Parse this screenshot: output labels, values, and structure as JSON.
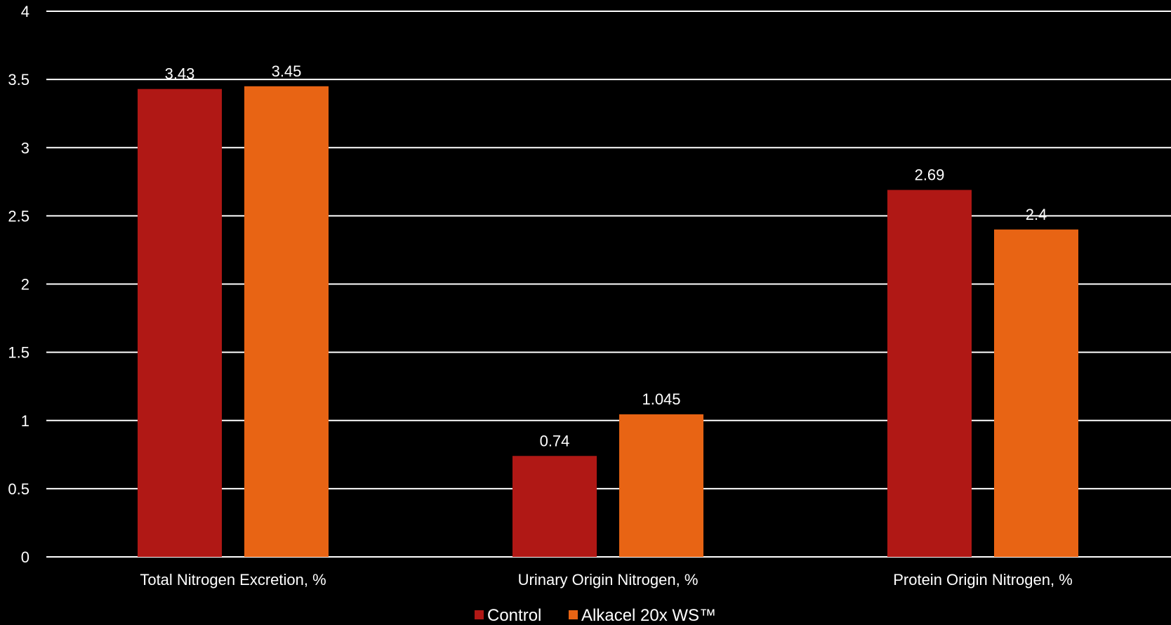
{
  "chart_data": {
    "type": "bar",
    "title": "",
    "xlabel": "",
    "ylabel": "",
    "categories": [
      "Total Nitrogen Excretion, %",
      "Urinary Origin Nitrogen, %",
      "Protein Origin Nitrogen, %"
    ],
    "series": [
      {
        "name": "Control",
        "color": "#B01815",
        "values": [
          3.43,
          0.74,
          2.69
        ],
        "labels": [
          "3.43",
          "0.74",
          "2.69"
        ]
      },
      {
        "name": "Alkacel 20x WS™",
        "color": "#E86414",
        "values": [
          3.45,
          1.045,
          2.4
        ],
        "labels": [
          "3.45",
          "1.045",
          "2.4"
        ]
      }
    ],
    "ylim": [
      0,
      4
    ],
    "yticks": [
      "0",
      "0.5",
      "1",
      "1.5",
      "2",
      "2.5",
      "3",
      "3.5",
      "4"
    ],
    "grid": true,
    "legend_position": "bottom-center",
    "background": "#000000"
  }
}
